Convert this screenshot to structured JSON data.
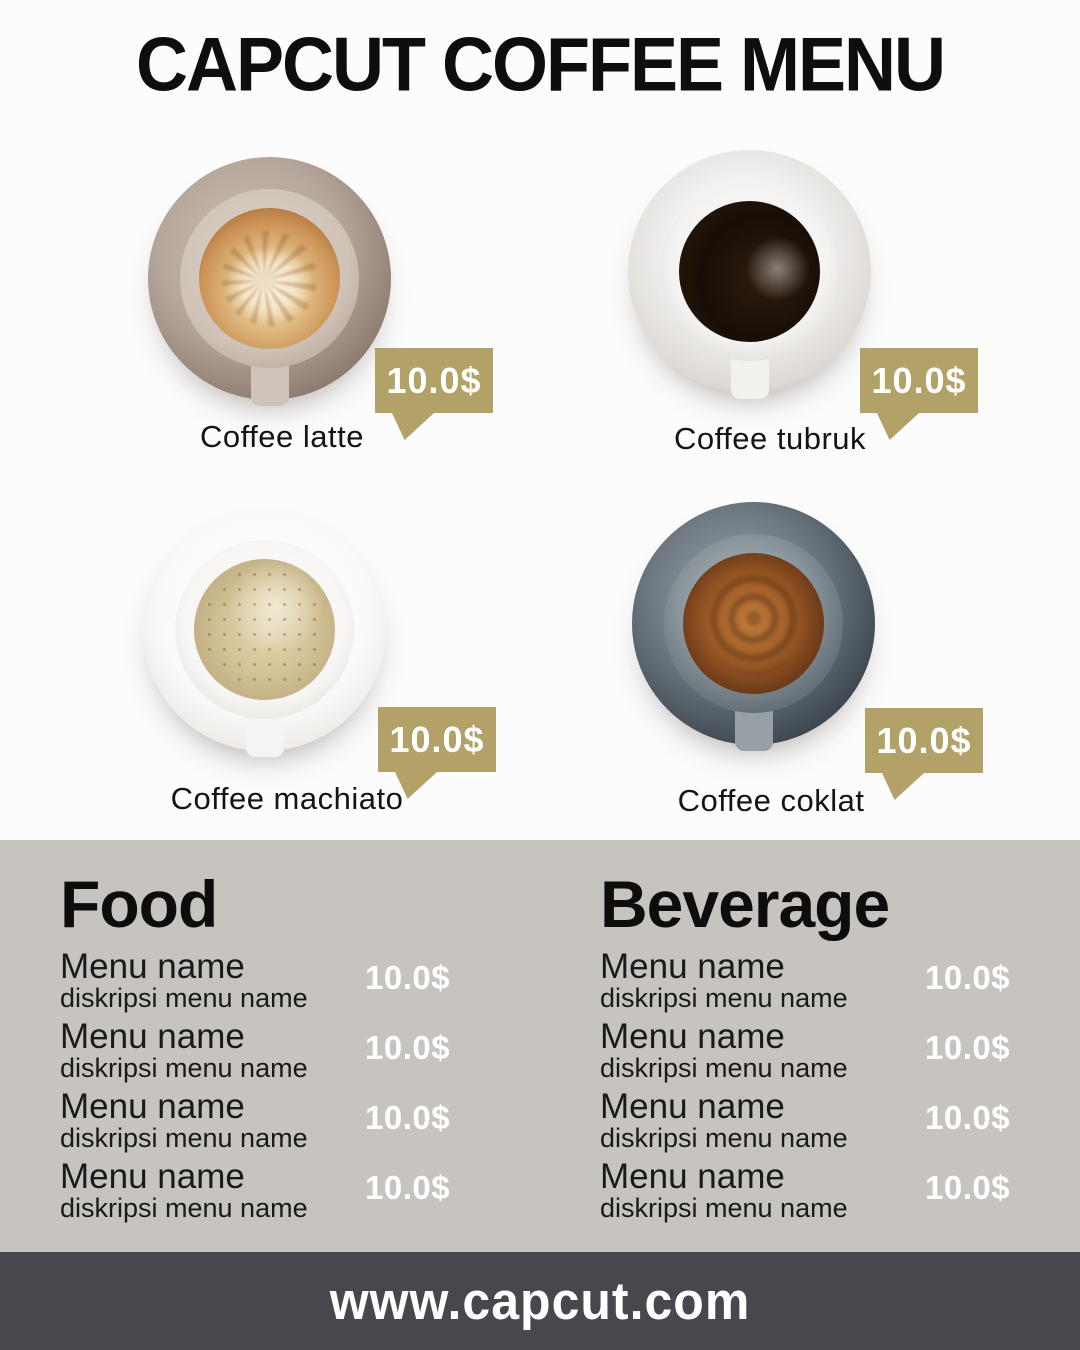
{
  "header": {
    "title": "CAPCUT COFFEE MENU"
  },
  "products": [
    {
      "name": "Coffee latte",
      "price": "10.0$",
      "photo": "latte-art-cup-top-view"
    },
    {
      "name": "Coffee tubruk",
      "price": "10.0$",
      "photo": "black-coffee-cup-top-view"
    },
    {
      "name": "Coffee machiato",
      "price": "10.0$",
      "photo": "macchiato-cup-top-view"
    },
    {
      "name": "Coffee coklat",
      "price": "10.0$",
      "photo": "chocolate-coffee-cup-top-view"
    }
  ],
  "menu": {
    "sections": [
      {
        "heading": "Food",
        "items": [
          {
            "name": "Menu name",
            "description": "diskripsi menu name",
            "price": "10.0$"
          },
          {
            "name": "Menu name",
            "description": "diskripsi menu name",
            "price": "10.0$"
          },
          {
            "name": "Menu name",
            "description": "diskripsi menu name",
            "price": "10.0$"
          },
          {
            "name": "Menu name",
            "description": "diskripsi menu name",
            "price": "10.0$"
          }
        ]
      },
      {
        "heading": "Beverage",
        "items": [
          {
            "name": "Menu name",
            "description": "diskripsi menu name",
            "price": "10.0$"
          },
          {
            "name": "Menu name",
            "description": "diskripsi menu name",
            "price": "10.0$"
          },
          {
            "name": "Menu name",
            "description": "diskripsi menu name",
            "price": "10.0$"
          },
          {
            "name": "Menu name",
            "description": "diskripsi menu name",
            "price": "10.0$"
          }
        ]
      }
    ]
  },
  "footer": {
    "website": "www.capcut.com"
  },
  "colors": {
    "price_tag_gold": "#b2a268",
    "menu_background": "#c7c4c0",
    "footer_background": "#47474e",
    "price_text": "#ffffff",
    "text": "#0e0e0e",
    "page_background": "#fcfcfd"
  }
}
